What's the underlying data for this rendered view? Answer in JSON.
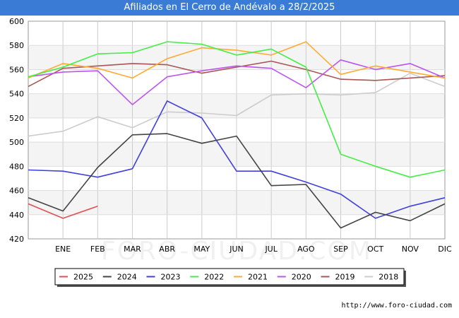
{
  "title": "Afiliados en El Cerro de Andévalo a 28/2/2025",
  "watermark": "FORO-CIUDAD.COM",
  "footer_url": "http://www.foro-ciudad.com",
  "chart_data": {
    "type": "line",
    "categories": [
      "",
      "ENE",
      "FEB",
      "MAR",
      "ABR",
      "MAY",
      "JUN",
      "JUL",
      "AGO",
      "SEP",
      "OCT",
      "NOV",
      "DIC"
    ],
    "ylim": [
      420,
      600
    ],
    "yticks": [
      420,
      440,
      460,
      480,
      500,
      520,
      540,
      560,
      580,
      600
    ],
    "grid": true,
    "legend_position": "bottom",
    "series": [
      {
        "name": "2025",
        "color": "#e05050",
        "values": [
          449,
          437,
          447,
          null,
          null,
          null,
          null,
          null,
          null,
          null,
          null,
          null,
          null
        ]
      },
      {
        "name": "2024",
        "color": "#444444",
        "values": [
          454,
          443,
          479,
          506,
          507,
          499,
          505,
          464,
          465,
          429,
          442,
          435,
          449
        ]
      },
      {
        "name": "2023",
        "color": "#4040dd",
        "values": [
          477,
          476,
          471,
          478,
          534,
          520,
          476,
          476,
          467,
          457,
          437,
          447,
          454
        ]
      },
      {
        "name": "2022",
        "color": "#44ee44",
        "values": [
          554,
          562,
          573,
          574,
          583,
          581,
          572,
          577,
          562,
          490,
          480,
          471,
          477
        ]
      },
      {
        "name": "2021",
        "color": "#ffaa33",
        "values": [
          553,
          565,
          561,
          553,
          569,
          578,
          576,
          572,
          583,
          556,
          563,
          558,
          553
        ]
      },
      {
        "name": "2020",
        "color": "#bb55ee",
        "values": [
          554,
          558,
          559,
          531,
          554,
          559,
          563,
          561,
          545,
          568,
          560,
          565,
          553
        ]
      },
      {
        "name": "2019",
        "color": "#aa5555",
        "values": [
          546,
          561,
          563,
          565,
          564,
          557,
          562,
          567,
          560,
          552,
          551,
          553,
          555
        ]
      },
      {
        "name": "2018",
        "color": "#cccccc",
        "values": [
          505,
          509,
          521,
          512,
          525,
          524,
          522,
          539,
          540,
          539,
          541,
          557,
          546
        ]
      }
    ]
  }
}
